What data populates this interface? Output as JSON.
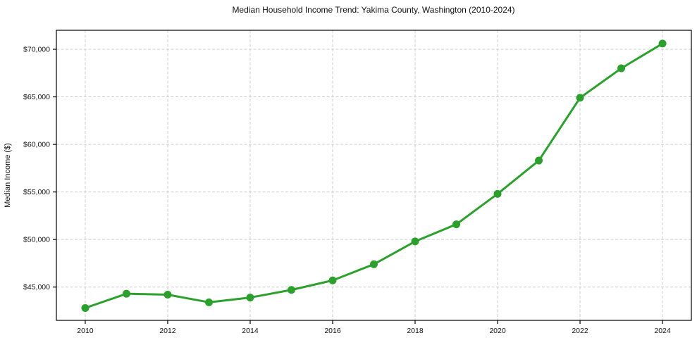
{
  "chart_data": {
    "type": "line",
    "title": "Median Household Income Trend: Yakima County, Washington (2010-2024)",
    "xlabel": "",
    "ylabel": "Median Income ($)",
    "x": [
      2010,
      2011,
      2012,
      2013,
      2014,
      2015,
      2016,
      2017,
      2018,
      2019,
      2020,
      2021,
      2022,
      2023,
      2024
    ],
    "series": [
      {
        "name": "Median Household Income",
        "values": [
          42800,
          44300,
          44200,
          43400,
          43900,
          44700,
          45700,
          47400,
          49800,
          51600,
          54800,
          58300,
          64900,
          68000,
          70600
        ]
      }
    ],
    "xlim": [
      2009.3,
      2024.7
    ],
    "ylim": [
      41500,
      72000
    ],
    "x_ticks": [
      2010,
      2012,
      2014,
      2016,
      2018,
      2020,
      2022,
      2024
    ],
    "x_tick_labels": [
      "2010",
      "2012",
      "2014",
      "2016",
      "2018",
      "2020",
      "2022",
      "2024"
    ],
    "y_ticks": [
      45000,
      50000,
      55000,
      60000,
      65000,
      70000
    ],
    "y_tick_labels": [
      "$45,000",
      "$50,000",
      "$55,000",
      "$60,000",
      "$65,000",
      "$70,000"
    ],
    "grid": true,
    "grid_style": "dashed",
    "legend": "none",
    "colors": {
      "line": "#2ca02c",
      "marker": "#2ca02c",
      "grid": "#cccccc",
      "spine": "#000000",
      "text": "#111111"
    }
  }
}
